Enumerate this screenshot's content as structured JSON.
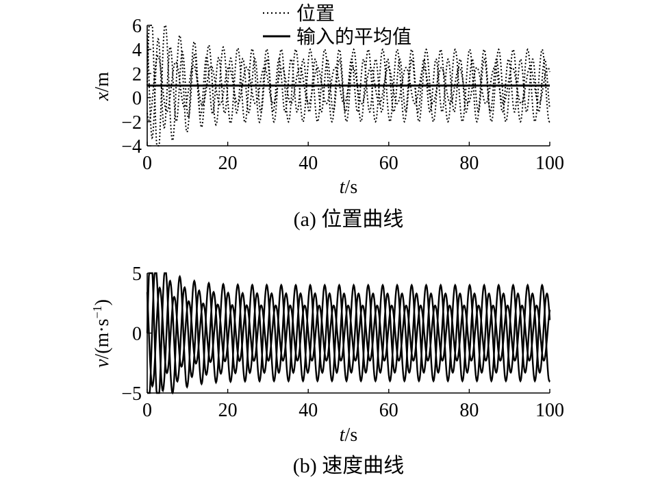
{
  "chart_data": [
    {
      "type": "line",
      "caption": "(a) 位置曲线",
      "xlabel_var": "t",
      "xlabel_unit": "/s",
      "ylabel_var": "x",
      "ylabel_unit": "/m",
      "xlim": [
        0,
        100
      ],
      "ylim": [
        -4,
        6
      ],
      "xticks": [
        "0",
        "20",
        "40",
        "60",
        "80",
        "100"
      ],
      "yticks": [
        "6",
        "4",
        "2",
        "0",
        "−2",
        "−4"
      ],
      "legend": {
        "placement": "top-center",
        "entries": [
          "位置",
          "输入的平均值"
        ]
      },
      "series": [
        {
          "name": "位置",
          "style": "dotted",
          "components": [
            {
              "amplitude": 3.0,
              "period": 3.6,
              "phase": 0.0,
              "transient": 1.5,
              "offset": 1.0
            },
            {
              "amplitude": 2.2,
              "period": 3.0,
              "phase": 2.1,
              "transient": 1.2,
              "offset": 1.0
            },
            {
              "amplitude": 1.5,
              "period": 4.4,
              "phase": 4.0,
              "transient": 1.0,
              "offset": 1.0
            }
          ]
        },
        {
          "name": "输入的平均值",
          "style": "solid",
          "y": 1.0
        }
      ]
    },
    {
      "type": "line",
      "caption": "(b) 速度曲线",
      "xlabel_var": "t",
      "xlabel_unit": "/s",
      "ylabel_var": "v",
      "ylabel_unit": "/(m·s",
      "ylabel_sup": "−1",
      "ylabel_close": ")",
      "xlim": [
        0,
        100
      ],
      "ylim": [
        -5,
        5
      ],
      "xticks": [
        "0",
        "20",
        "40",
        "60",
        "80",
        "100"
      ],
      "yticks": [
        "5",
        "0",
        "−5"
      ],
      "series_components": [
        {
          "amplitude": 4.0,
          "period": 3.6,
          "phase": 0.0,
          "transient": 0.9
        },
        {
          "amplitude": 2.3,
          "period": 3.6,
          "phase": 2.4,
          "transient": 1.2
        },
        {
          "amplitude": 3.3,
          "period": 3.6,
          "phase": 4.2,
          "transient": 1.0
        }
      ]
    }
  ]
}
